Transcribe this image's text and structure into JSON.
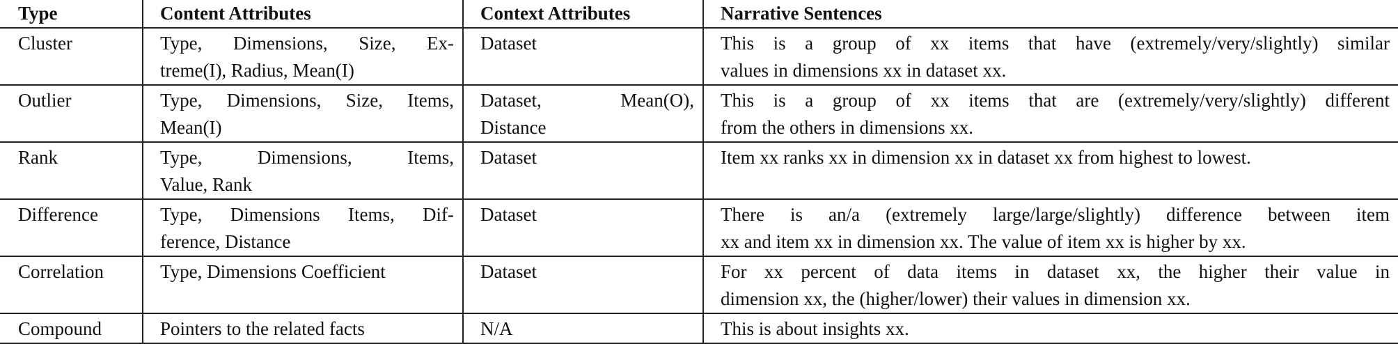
{
  "table": {
    "headers": [
      "Type",
      "Content Attributes",
      "Context Attributes",
      "Narrative Sentences"
    ],
    "rows": [
      {
        "type": "Cluster",
        "content_lines": [
          "Type, Dimensions, Size, Ex-",
          "treme(I), Radius, Mean(I)"
        ],
        "context_lines": [
          "Dataset"
        ],
        "narrative_lines": [
          "This is a group of xx items that have (extremely/very/slightly) similar",
          "values in dimensions xx in dataset xx."
        ]
      },
      {
        "type": "Outlier",
        "content_lines": [
          "Type, Dimensions, Size, Items,",
          "Mean(I)"
        ],
        "context_lines": [
          "Dataset,        Mean(O),",
          "Distance"
        ],
        "narrative_lines": [
          "This is a group of xx items that are (extremely/very/slightly) different",
          "from the others in dimensions xx."
        ]
      },
      {
        "type": "Rank",
        "content_lines": [
          "Type,     Dimensions,     Items,",
          "Value, Rank"
        ],
        "context_lines": [
          "Dataset"
        ],
        "narrative_lines": [
          "Item xx ranks xx in dimension xx in dataset xx from highest to lowest."
        ]
      },
      {
        "type": "Difference",
        "content_lines": [
          "Type, Dimensions Items, Dif-",
          "ference, Distance"
        ],
        "context_lines": [
          "Dataset"
        ],
        "narrative_lines": [
          "There is an/a (extremely large/large/slightly) difference between item",
          "xx and item xx in dimension xx. The value of item xx is higher by xx."
        ]
      },
      {
        "type": "Correlation",
        "content_lines": [
          "Type, Dimensions Coefficient"
        ],
        "context_lines": [
          "Dataset"
        ],
        "narrative_lines": [
          "For xx percent of data items in dataset xx, the higher their value in",
          "dimension xx, the (higher/lower) their values in dimension xx."
        ]
      },
      {
        "type": "Compound",
        "content_lines": [
          "Pointers to the related facts"
        ],
        "context_lines": [
          "N/A"
        ],
        "narrative_lines": [
          "This is about insights xx."
        ]
      }
    ]
  }
}
